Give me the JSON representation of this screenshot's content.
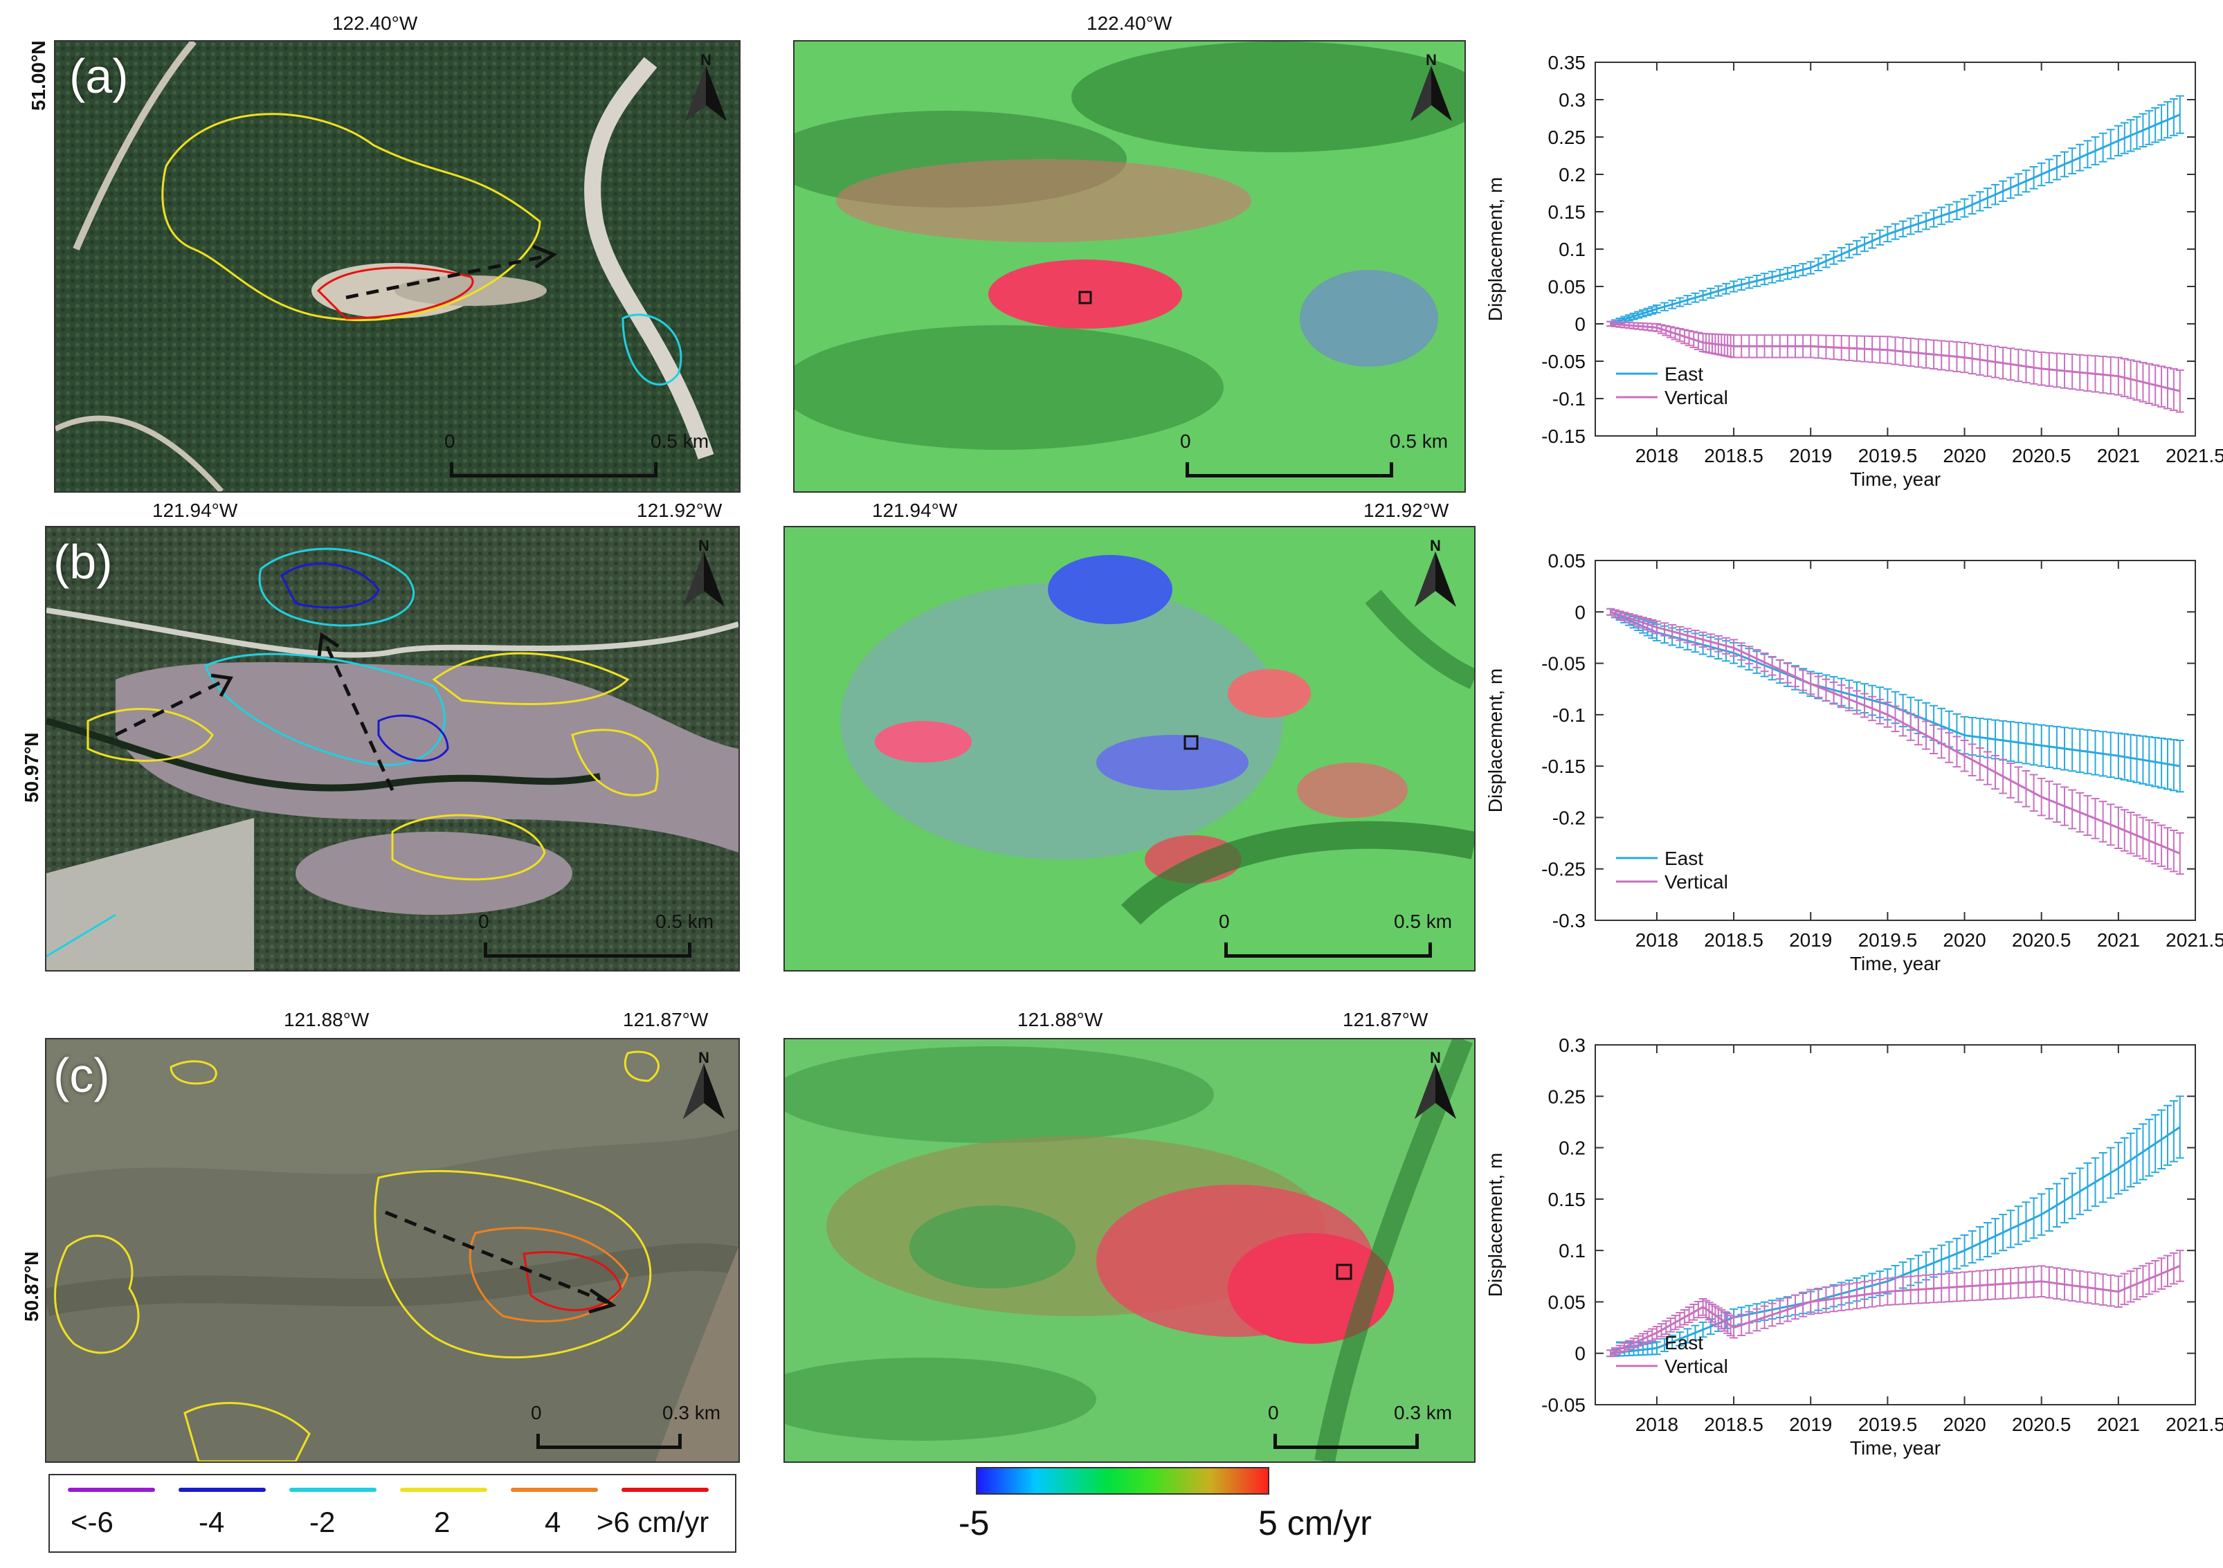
{
  "rows": [
    {
      "id": "a",
      "label": "(a)",
      "optical": {
        "top_coords": [
          "122.40°W"
        ],
        "side_coord": "51.00°N",
        "scale": {
          "zero": "0",
          "dist": "0.5 km"
        }
      },
      "velocity": {
        "top_coords": [
          "122.40°W"
        ],
        "scale": {
          "zero": "0",
          "dist": "0.5 km"
        }
      }
    },
    {
      "id": "b",
      "label": "(b)",
      "optical": {
        "top_coords": [
          "121.94°W",
          "121.92°W"
        ],
        "side_coord": "50.97°N",
        "scale": {
          "zero": "0",
          "dist": "0.5 km"
        }
      },
      "velocity": {
        "top_coords": [
          "121.94°W",
          "121.92°W"
        ],
        "scale": {
          "zero": "0",
          "dist": "0.5 km"
        }
      }
    },
    {
      "id": "c",
      "label": "(c)",
      "optical": {
        "top_coords": [
          "121.88°W",
          "121.87°W"
        ],
        "side_coord": "50.87°N",
        "scale": {
          "zero": "0",
          "dist": "0.3 km"
        }
      },
      "velocity": {
        "top_coords": [
          "121.88°W",
          "121.87°W"
        ],
        "scale": {
          "zero": "0",
          "dist": "0.3 km"
        }
      }
    }
  ],
  "north_label": "N",
  "contour_legend": {
    "items": [
      {
        "label": "<-6",
        "color": "#9a1ad0"
      },
      {
        "label": "-4",
        "color": "#1a1ad0"
      },
      {
        "label": "-2",
        "color": "#20d0e0"
      },
      {
        "label": "2",
        "color": "#f0e020"
      },
      {
        "label": "4",
        "color": "#f08020"
      },
      {
        "label": ">6 cm/yr",
        "color": "#e81010"
      }
    ]
  },
  "colorbar": {
    "min_label": "-5",
    "max_label": "5 cm/yr"
  },
  "colors": {
    "east": "#29a8e0",
    "vertical": "#c870c0"
  },
  "chart_data": [
    {
      "type": "line",
      "xlabel": "Time, year",
      "ylabel": "Displacement, m",
      "xlim": [
        2017.6,
        2021.5
      ],
      "ylim": [
        -0.15,
        0.35
      ],
      "xticks": [
        2018,
        2018.5,
        2019,
        2019.5,
        2020,
        2020.5,
        2021,
        2021.5
      ],
      "yticks": [
        -0.15,
        -0.1,
        -0.05,
        0,
        0.05,
        0.1,
        0.15,
        0.2,
        0.25,
        0.3,
        0.35
      ],
      "legend_position": "bottom-left",
      "series": [
        {
          "name": "East",
          "color": "#29a8e0",
          "x": [
            2017.7,
            2018.0,
            2018.5,
            2019.0,
            2019.5,
            2020.0,
            2020.5,
            2021.0,
            2021.4
          ],
          "y": [
            0,
            0.02,
            0.05,
            0.075,
            0.12,
            0.155,
            0.2,
            0.245,
            0.28
          ],
          "err": [
            0.003,
            0.005,
            0.007,
            0.008,
            0.01,
            0.012,
            0.015,
            0.02,
            0.025
          ]
        },
        {
          "name": "Vertical",
          "color": "#c870c0",
          "x": [
            2017.7,
            2018.0,
            2018.3,
            2018.5,
            2019.0,
            2019.5,
            2020.0,
            2020.5,
            2021.0,
            2021.4
          ],
          "y": [
            0,
            -0.005,
            -0.025,
            -0.03,
            -0.03,
            -0.035,
            -0.045,
            -0.06,
            -0.07,
            -0.09
          ],
          "err": [
            0.003,
            0.005,
            0.012,
            0.015,
            0.015,
            0.018,
            0.02,
            0.022,
            0.025,
            0.028
          ]
        }
      ]
    },
    {
      "type": "line",
      "xlabel": "Time, year",
      "ylabel": "Displacement, m",
      "xlim": [
        2017.6,
        2021.5
      ],
      "ylim": [
        -0.3,
        0.05
      ],
      "xticks": [
        2018,
        2018.5,
        2019,
        2019.5,
        2020,
        2020.5,
        2021,
        2021.5
      ],
      "yticks": [
        -0.3,
        -0.25,
        -0.2,
        -0.15,
        -0.1,
        -0.05,
        0,
        0.05
      ],
      "legend_position": "bottom-left",
      "series": [
        {
          "name": "East",
          "color": "#29a8e0",
          "x": [
            2017.7,
            2018.0,
            2018.5,
            2019.0,
            2019.5,
            2020.0,
            2020.5,
            2021.0,
            2021.4
          ],
          "y": [
            0,
            -0.02,
            -0.04,
            -0.07,
            -0.09,
            -0.12,
            -0.13,
            -0.14,
            -0.15
          ],
          "err": [
            0.003,
            0.008,
            0.01,
            0.012,
            0.015,
            0.018,
            0.02,
            0.022,
            0.025
          ]
        },
        {
          "name": "Vertical",
          "color": "#c870c0",
          "x": [
            2017.7,
            2018.0,
            2018.5,
            2019.0,
            2019.5,
            2020.0,
            2020.5,
            2021.0,
            2021.4
          ],
          "y": [
            0,
            -0.015,
            -0.035,
            -0.07,
            -0.1,
            -0.14,
            -0.18,
            -0.21,
            -0.235
          ],
          "err": [
            0.003,
            0.006,
            0.008,
            0.01,
            0.012,
            0.015,
            0.018,
            0.02,
            0.02
          ]
        }
      ]
    },
    {
      "type": "line",
      "xlabel": "Time, year",
      "ylabel": "Displacement, m",
      "xlim": [
        2017.6,
        2021.5
      ],
      "ylim": [
        -0.05,
        0.3
      ],
      "xticks": [
        2018,
        2018.5,
        2019,
        2019.5,
        2020,
        2020.5,
        2021,
        2021.5
      ],
      "yticks": [
        -0.05,
        0,
        0.05,
        0.1,
        0.15,
        0.2,
        0.25,
        0.3
      ],
      "legend_position": "bottom-left",
      "series": [
        {
          "name": "East",
          "color": "#29a8e0",
          "x": [
            2017.7,
            2018.0,
            2018.5,
            2019.0,
            2019.5,
            2020.0,
            2020.5,
            2021.0,
            2021.4
          ],
          "y": [
            0,
            0.005,
            0.035,
            0.05,
            0.07,
            0.1,
            0.135,
            0.18,
            0.22
          ],
          "err": [
            0.003,
            0.006,
            0.008,
            0.01,
            0.012,
            0.015,
            0.02,
            0.025,
            0.03
          ]
        },
        {
          "name": "Vertical",
          "color": "#c870c0",
          "x": [
            2017.7,
            2018.0,
            2018.3,
            2018.5,
            2019.0,
            2019.5,
            2020.0,
            2020.5,
            2021.0,
            2021.4
          ],
          "y": [
            0,
            0.02,
            0.045,
            0.025,
            0.05,
            0.06,
            0.065,
            0.07,
            0.06,
            0.085
          ],
          "err": [
            0.003,
            0.006,
            0.008,
            0.01,
            0.012,
            0.013,
            0.014,
            0.015,
            0.015,
            0.015
          ]
        }
      ]
    }
  ]
}
